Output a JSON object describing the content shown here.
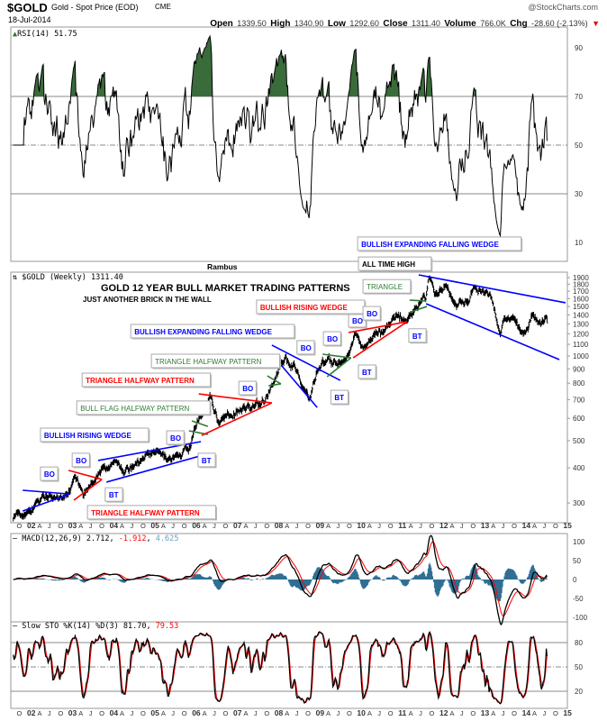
{
  "header": {
    "symbol": "$GOLD",
    "name": "Gold - Spot Price (EOD)",
    "exchange": "CME",
    "date": "18-Jul-2014",
    "watermark": "@StockCharts.com",
    "open_label": "Open",
    "open": "1339.50",
    "high_label": "High",
    "high": "1340.90",
    "low_label": "Low",
    "low": "1292.60",
    "close_label": "Close",
    "close": "1311.40",
    "volume_label": "Volume",
    "volume": "766.0K",
    "chg_label": "Chg",
    "chg": "-28.60 (-2.13%)",
    "chg_arrow": "▼"
  },
  "colors": {
    "up_green": "#3a6b3a",
    "trend_blue": "#0000ff",
    "trend_red": "#ff0000",
    "trend_green": "#2e7d32",
    "macd_hist": "#2f6f94",
    "signal_red": "#ff0000"
  },
  "chart_data": [
    {
      "panel": "rsi",
      "type": "line",
      "label": "RSI(14) 51.75",
      "yticks": [
        90,
        70,
        50,
        30,
        10
      ],
      "ylim": [
        0,
        100
      ],
      "reference_lines": [
        70,
        50,
        30
      ],
      "current": 51.75
    },
    {
      "panel": "price",
      "type": "ohlc-bar",
      "scale": "log",
      "label": "$GOLD (Weekly) 1311.40",
      "author": "Rambus",
      "title": "GOLD 12 YEAR BULL MARKET TRADING PATTERNS",
      "subtitle": "JUST ANOTHER BRICK IN THE WALL",
      "yticks": [
        1900,
        1800,
        1700,
        1600,
        1500,
        1400,
        1300,
        1200,
        1100,
        1000,
        900,
        800,
        700,
        600,
        500,
        400,
        300
      ],
      "xlim": [
        2001.6,
        2015.1
      ],
      "x_tick_labels": [
        "O",
        "02",
        "A",
        "J",
        "O",
        "03",
        "A",
        "J",
        "O",
        "04",
        "A",
        "J",
        "O",
        "05",
        "A",
        "J",
        "O",
        "06",
        "A",
        "J",
        "O",
        "07",
        "A",
        "J",
        "O",
        "08",
        "A",
        "J",
        "O",
        "09",
        "A",
        "J",
        "O",
        "10",
        "A",
        "J",
        "O",
        "11",
        "A",
        "J",
        "O",
        "12",
        "A",
        "J",
        "O",
        "13",
        "A",
        "J",
        "O",
        "14",
        "A",
        "J",
        "O",
        "15"
      ],
      "price_path": [
        [
          2001.6,
          270
        ],
        [
          2002.0,
          285
        ],
        [
          2002.5,
          320
        ],
        [
          2002.9,
          318
        ],
        [
          2003.1,
          370
        ],
        [
          2003.3,
          325
        ],
        [
          2003.7,
          385
        ],
        [
          2004.0,
          420
        ],
        [
          2004.3,
          385
        ],
        [
          2004.5,
          395
        ],
        [
          2004.9,
          450
        ],
        [
          2005.3,
          420
        ],
        [
          2005.6,
          425
        ],
        [
          2005.9,
          480
        ],
        [
          2006.0,
          560
        ],
        [
          2006.4,
          720
        ],
        [
          2006.6,
          580
        ],
        [
          2006.8,
          600
        ],
        [
          2007.0,
          640
        ],
        [
          2007.4,
          660
        ],
        [
          2007.7,
          700
        ],
        [
          2007.9,
          800
        ],
        [
          2008.2,
          1000
        ],
        [
          2008.5,
          900
        ],
        [
          2008.8,
          720
        ],
        [
          2008.95,
          850
        ],
        [
          2009.1,
          950
        ],
        [
          2009.4,
          930
        ],
        [
          2009.7,
          1000
        ],
        [
          2009.9,
          1200
        ],
        [
          2010.1,
          1080
        ],
        [
          2010.45,
          1250
        ],
        [
          2010.6,
          1200
        ],
        [
          2010.9,
          1400
        ],
        [
          2011.1,
          1330
        ],
        [
          2011.4,
          1520
        ],
        [
          2011.6,
          1600
        ],
        [
          2011.68,
          1900
        ],
        [
          2011.9,
          1600
        ],
        [
          2012.05,
          1750
        ],
        [
          2012.35,
          1560
        ],
        [
          2012.6,
          1600
        ],
        [
          2012.8,
          1780
        ],
        [
          2013.0,
          1680
        ],
        [
          2013.2,
          1580
        ],
        [
          2013.4,
          1250
        ],
        [
          2013.6,
          1400
        ],
        [
          2013.8,
          1260
        ],
        [
          2013.95,
          1200
        ],
        [
          2014.2,
          1380
        ],
        [
          2014.4,
          1290
        ],
        [
          2014.5,
          1330
        ],
        [
          2014.55,
          1311.4
        ]
      ],
      "trendlines": [
        {
          "color": "blue",
          "from": [
            2001.83,
            281
          ],
          "to": [
            2002.98,
            323
          ]
        },
        {
          "color": "blue",
          "from": [
            2001.83,
            333
          ],
          "to": [
            2002.96,
            323
          ]
        },
        {
          "color": "red",
          "from": [
            2002.94,
            392
          ],
          "to": [
            2003.75,
            364
          ]
        },
        {
          "color": "red",
          "from": [
            2003.07,
            307
          ],
          "to": [
            2003.75,
            364
          ]
        },
        {
          "color": "blue",
          "from": [
            2003.66,
            425
          ],
          "to": [
            2006.15,
            496
          ]
        },
        {
          "color": "blue",
          "from": [
            2003.86,
            356
          ],
          "to": [
            2006.13,
            441
          ]
        },
        {
          "color": "green",
          "from": [
            2005.93,
            588
          ],
          "to": [
            2006.32,
            562
          ]
        },
        {
          "color": "green",
          "from": [
            2005.86,
            542
          ],
          "to": [
            2006.32,
            526
          ]
        },
        {
          "color": "red",
          "from": [
            2006.1,
            733
          ],
          "to": [
            2007.87,
            681
          ]
        },
        {
          "color": "red",
          "from": [
            2006.17,
            522
          ],
          "to": [
            2007.87,
            681
          ]
        },
        {
          "color": "green",
          "from": [
            2007.76,
            850
          ],
          "to": [
            2008.09,
            796
          ]
        },
        {
          "color": "green",
          "from": [
            2007.79,
            784
          ],
          "to": [
            2008.09,
            796
          ]
        },
        {
          "color": "blue",
          "from": [
            2007.87,
            1093
          ],
          "to": [
            2009.53,
            819
          ]
        },
        {
          "color": "blue",
          "from": [
            2007.87,
            1015
          ],
          "to": [
            2008.97,
            656
          ]
        },
        {
          "color": "green",
          "from": [
            2009.1,
            1015
          ],
          "to": [
            2009.79,
            985
          ]
        },
        {
          "color": "green",
          "from": [
            2009.21,
            844
          ],
          "to": [
            2009.79,
            985
          ]
        },
        {
          "color": "red",
          "from": [
            2009.73,
            1212
          ],
          "to": [
            2011.15,
            1324
          ]
        },
        {
          "color": "red",
          "from": [
            2009.84,
            985
          ],
          "to": [
            2011.15,
            1324
          ]
        },
        {
          "color": "green",
          "from": [
            2011.21,
            1580
          ],
          "to": [
            2011.61,
            1569
          ]
        },
        {
          "color": "green",
          "from": [
            2011.24,
            1436
          ],
          "to": [
            2011.63,
            1500
          ]
        },
        {
          "color": "blue",
          "from": [
            2011.43,
            1943
          ],
          "to": [
            2014.99,
            1546
          ]
        },
        {
          "color": "blue",
          "from": [
            2011.61,
            1534
          ],
          "to": [
            2014.84,
            971
          ]
        }
      ],
      "annotations": [
        {
          "text": "BULLISH RISING WEDGE",
          "color": "blue",
          "at": [
            2002.26,
            554
          ]
        },
        {
          "text": "BO",
          "color": "blue",
          "at": [
            2002.26,
            403
          ]
        },
        {
          "text": "BO",
          "color": "blue",
          "at": [
            2003.03,
            451
          ]
        },
        {
          "text": "BT",
          "color": "blue",
          "at": [
            2003.83,
            340
          ]
        },
        {
          "text": "TRIANGLE HALFWAY PATTERN",
          "color": "red",
          "at": [
            2003.4,
            294
          ]
        },
        {
          "text": "BULL FLAG HALFWAY PATTERN",
          "color": "green",
          "at": [
            2003.14,
            692
          ]
        },
        {
          "text": "TRIANGLE HALFWAY PATTERN",
          "color": "red",
          "at": [
            2003.27,
            869
          ]
        },
        {
          "text": "BO",
          "color": "blue",
          "at": [
            2005.32,
            542
          ]
        },
        {
          "text": "BT",
          "color": "blue",
          "at": [
            2006.08,
            451
          ]
        },
        {
          "text": "BO",
          "color": "blue",
          "at": [
            2007.07,
            813
          ]
        },
        {
          "text": "TRIANGLE HALFWAY PATTERN",
          "color": "green",
          "at": [
            2004.95,
            1015
          ]
        },
        {
          "text": "BULLISH EXPANDING FALLING WEDGE",
          "color": "blue",
          "at": [
            2004.45,
            1295
          ]
        },
        {
          "text": "BO",
          "color": "blue",
          "at": [
            2008.48,
            1134
          ]
        },
        {
          "text": "BO",
          "color": "blue",
          "at": [
            2009.12,
            1220
          ]
        },
        {
          "text": "BT",
          "color": "blue",
          "at": [
            2009.3,
            755
          ]
        },
        {
          "text": "BO",
          "color": "blue",
          "at": [
            2009.73,
            1415
          ]
        },
        {
          "text": "BT",
          "color": "blue",
          "at": [
            2009.97,
            929
          ]
        },
        {
          "text": "BULLISH RISING WEDGE",
          "color": "red",
          "at": [
            2007.5,
            1580
          ]
        },
        {
          "text": "BO",
          "color": "blue",
          "at": [
            2010.08,
            1500
          ]
        },
        {
          "text": "BT",
          "color": "blue",
          "at": [
            2011.19,
            1250
          ]
        },
        {
          "text": "TRIANGLE",
          "color": "green",
          "at": [
            2010.08,
            1870
          ]
        },
        {
          "text": "ALL TIME HIGH",
          "color": "black",
          "at": [
            2009.97,
            2250
          ]
        },
        {
          "text": "BULLISH EXPANDING FALLING WEDGE",
          "color": "blue",
          "at": [
            2009.95,
            2650
          ]
        }
      ]
    },
    {
      "panel": "macd",
      "type": "line+histogram",
      "label": "MACD(12,26,9)",
      "macd": "2.712",
      "signal": "-1.912",
      "histogram": "4.625",
      "yticks": [
        100,
        50,
        0,
        -50,
        -100
      ]
    },
    {
      "panel": "stochastic",
      "type": "line",
      "label": "Slow STO %K(14) %D(3)",
      "k": "81.70",
      "d": "79.53",
      "yticks": [
        80,
        50,
        20
      ],
      "reference_lines": [
        80,
        50,
        20
      ]
    }
  ]
}
